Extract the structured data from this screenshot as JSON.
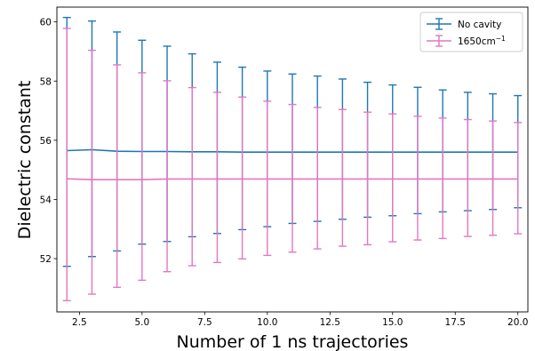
{
  "chart_data": {
    "type": "line",
    "title": "",
    "xlabel": "Number of 1 ns trajectories",
    "ylabel": "Dielectric constant",
    "xlim": [
      1.6,
      20.4
    ],
    "ylim": [
      50.2,
      60.5
    ],
    "x_ticks": [
      2.5,
      5.0,
      7.5,
      10.0,
      12.5,
      15.0,
      17.5,
      20.0
    ],
    "x_tick_labels": [
      "2.5",
      "5.0",
      "7.5",
      "10.0",
      "12.5",
      "15.0",
      "17.5",
      "20.0"
    ],
    "y_ticks": [
      52,
      54,
      56,
      58,
      60
    ],
    "y_tick_labels": [
      "52",
      "54",
      "56",
      "58",
      "60"
    ],
    "grid": false,
    "legend_position": "top-right",
    "x": [
      2,
      3,
      4,
      5,
      6,
      7,
      8,
      9,
      10,
      11,
      12,
      13,
      14,
      15,
      16,
      17,
      18,
      19,
      20
    ],
    "series": [
      {
        "name": "No cavity",
        "legend_label": "No cavity",
        "color": "#1f77b4",
        "values": [
          55.65,
          55.68,
          55.63,
          55.62,
          55.62,
          55.61,
          55.61,
          55.6,
          55.6,
          55.6,
          55.6,
          55.6,
          55.6,
          55.6,
          55.6,
          55.6,
          55.6,
          55.6,
          55.6
        ],
        "upper": [
          60.15,
          60.03,
          59.66,
          59.38,
          59.18,
          58.92,
          58.64,
          58.47,
          58.34,
          58.24,
          58.17,
          58.07,
          57.96,
          57.87,
          57.79,
          57.7,
          57.62,
          57.57,
          57.51
        ],
        "lower": [
          51.74,
          52.07,
          52.26,
          52.49,
          52.58,
          52.74,
          52.85,
          52.98,
          53.08,
          53.19,
          53.26,
          53.33,
          53.4,
          53.45,
          53.52,
          53.58,
          53.62,
          53.66,
          53.72
        ]
      },
      {
        "name": "1650cm-1",
        "legend_label": "1650cm",
        "legend_sup": "−1",
        "color": "#e377c2",
        "values": [
          54.7,
          54.67,
          54.67,
          54.67,
          54.69,
          54.69,
          54.69,
          54.69,
          54.69,
          54.69,
          54.69,
          54.69,
          54.69,
          54.69,
          54.69,
          54.69,
          54.69,
          54.69,
          54.69
        ],
        "upper": [
          59.78,
          59.04,
          58.55,
          58.28,
          58.01,
          57.78,
          57.62,
          57.46,
          57.32,
          57.21,
          57.11,
          57.04,
          56.95,
          56.89,
          56.81,
          56.75,
          56.7,
          56.65,
          56.6
        ],
        "lower": [
          50.58,
          50.8,
          51.03,
          51.27,
          51.56,
          51.76,
          51.87,
          51.99,
          52.11,
          52.22,
          52.33,
          52.42,
          52.47,
          52.57,
          52.63,
          52.68,
          52.75,
          52.79,
          52.84
        ]
      }
    ]
  }
}
